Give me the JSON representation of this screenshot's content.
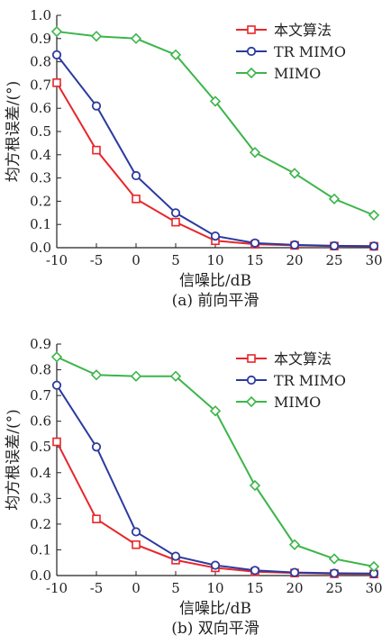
{
  "chart_data": [
    {
      "type": "line",
      "caption": "(a) 前向平滑",
      "xlabel": "信噪比/dB",
      "ylabel": "均方根误差/(°)",
      "x": [
        -10,
        -5,
        0,
        5,
        10,
        15,
        20,
        25,
        30
      ],
      "xlim": [
        -10,
        30
      ],
      "ylim": [
        0,
        1.0
      ],
      "xticks": [
        "-10",
        "-5",
        "0",
        "5",
        "10",
        "15",
        "20",
        "25",
        "30"
      ],
      "yticks": [
        "0.0",
        "0.1",
        "0.2",
        "0.3",
        "0.4",
        "0.5",
        "0.6",
        "0.7",
        "0.8",
        "0.9",
        "1.0"
      ],
      "grid": false,
      "legend_position": "top-right",
      "series": [
        {
          "name": "本文算法",
          "color": "#e8262a",
          "marker": "square",
          "values": [
            0.71,
            0.42,
            0.21,
            0.11,
            0.03,
            0.015,
            0.01,
            0.007,
            0.006
          ]
        },
        {
          "name": "TR MIMO",
          "color": "#2b3a9e",
          "marker": "circle",
          "values": [
            0.83,
            0.61,
            0.31,
            0.15,
            0.05,
            0.02,
            0.012,
            0.008,
            0.007
          ]
        },
        {
          "name": "MIMO",
          "color": "#3cb54a",
          "marker": "diamond",
          "values": [
            0.93,
            0.91,
            0.9,
            0.83,
            0.63,
            0.41,
            0.32,
            0.21,
            0.14
          ]
        }
      ]
    },
    {
      "type": "line",
      "caption": "(b) 双向平滑",
      "xlabel": "信噪比/dB",
      "ylabel": "均方根误差/(°)",
      "x": [
        -10,
        -5,
        0,
        5,
        10,
        15,
        20,
        25,
        30
      ],
      "xlim": [
        -10,
        30
      ],
      "ylim": [
        0,
        0.9
      ],
      "xticks": [
        "-10",
        "-5",
        "0",
        "5",
        "10",
        "15",
        "20",
        "25",
        "30"
      ],
      "yticks": [
        "0.0",
        "0.1",
        "0.2",
        "0.3",
        "0.4",
        "0.5",
        "0.6",
        "0.7",
        "0.8",
        "0.9"
      ],
      "grid": false,
      "legend_position": "top-right",
      "series": [
        {
          "name": "本文算法",
          "color": "#e8262a",
          "marker": "square",
          "values": [
            0.52,
            0.22,
            0.12,
            0.06,
            0.03,
            0.015,
            0.01,
            0.007,
            0.006
          ]
        },
        {
          "name": "TR MIMO",
          "color": "#2b3a9e",
          "marker": "circle",
          "values": [
            0.74,
            0.5,
            0.17,
            0.075,
            0.04,
            0.02,
            0.012,
            0.009,
            0.008
          ]
        },
        {
          "name": "MIMO",
          "color": "#3cb54a",
          "marker": "diamond",
          "values": [
            0.85,
            0.78,
            0.775,
            0.775,
            0.64,
            0.35,
            0.12,
            0.065,
            0.035
          ]
        }
      ]
    }
  ]
}
